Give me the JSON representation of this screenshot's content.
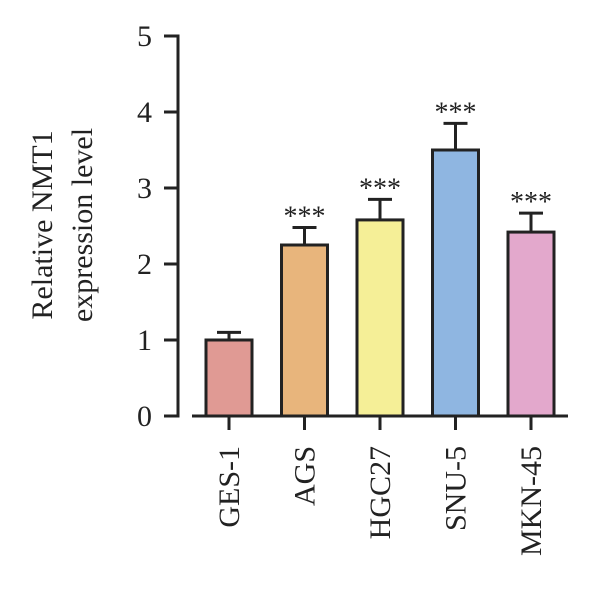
{
  "chart_data": {
    "type": "bar",
    "ylabel": [
      "Relative NMT1",
      "expression level"
    ],
    "ylim": [
      0,
      5
    ],
    "yticks": [
      0,
      1,
      2,
      3,
      4,
      5
    ],
    "grid": false,
    "categories": [
      "GES-1",
      "AGS",
      "HGC27",
      "SNU-5",
      "MKN-45"
    ],
    "values": [
      1.0,
      2.25,
      2.58,
      3.5,
      2.42
    ],
    "errors": [
      0.1,
      0.23,
      0.27,
      0.35,
      0.25
    ],
    "significance": [
      "",
      "***",
      "***",
      "***",
      "***"
    ],
    "colors": [
      "#e09a94",
      "#e8b57c",
      "#f5ef97",
      "#8fb6e1",
      "#e3a8cc"
    ]
  }
}
